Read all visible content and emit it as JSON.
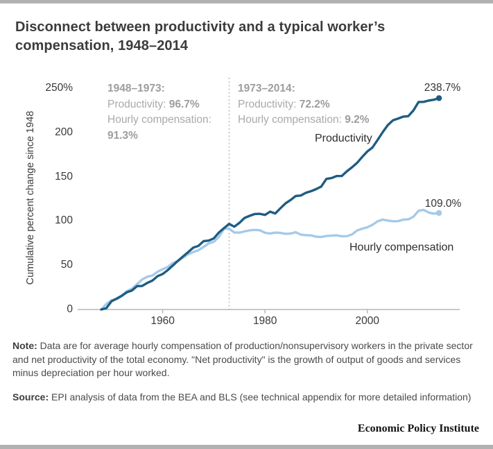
{
  "header": {
    "title_line1": "Disconnect between productivity and a typical worker’s",
    "title_line2": "compensation, 1948–2014"
  },
  "chart_data": {
    "type": "line",
    "title": "Disconnect between productivity and a typical worker’s compensation, 1948–2014",
    "xlabel": "",
    "ylabel": "Cumulative percent change since 1948",
    "xlim": [
      1948,
      2014
    ],
    "ylim": [
      0,
      250
    ],
    "grid": false,
    "legend_position": "inline-labels",
    "divider_year": 1973,
    "x_ticks": [
      {
        "label": "1960",
        "value": 1960
      },
      {
        "label": "1980",
        "value": 1980
      },
      {
        "label": "2000",
        "value": 2000
      }
    ],
    "y_ticks": [
      {
        "label": "250%",
        "value": 250
      },
      {
        "label": "200",
        "value": 200
      },
      {
        "label": "150",
        "value": 150
      },
      {
        "label": "100",
        "value": 100
      },
      {
        "label": "50",
        "value": 50
      },
      {
        "label": "0",
        "value": 0
      }
    ],
    "x": [
      1948,
      1949,
      1950,
      1951,
      1952,
      1953,
      1954,
      1955,
      1956,
      1957,
      1958,
      1959,
      1960,
      1961,
      1962,
      1963,
      1964,
      1965,
      1966,
      1967,
      1968,
      1969,
      1970,
      1971,
      1972,
      1973,
      1974,
      1975,
      1976,
      1977,
      1978,
      1979,
      1980,
      1981,
      1982,
      1983,
      1984,
      1985,
      1986,
      1987,
      1988,
      1989,
      1990,
      1991,
      1992,
      1993,
      1994,
      1995,
      1996,
      1997,
      1998,
      1999,
      2000,
      2001,
      2002,
      2003,
      2004,
      2005,
      2006,
      2007,
      2008,
      2009,
      2010,
      2011,
      2012,
      2013,
      2014
    ],
    "series": [
      {
        "name": "Productivity",
        "color": "#1f5c82",
        "end_label": "238.7%",
        "values": [
          0,
          1.6,
          9.3,
          12.2,
          15.5,
          19.4,
          21.5,
          26.4,
          26.6,
          30.0,
          32.7,
          37.6,
          40.1,
          44.4,
          49.8,
          55.0,
          60.0,
          64.9,
          69.9,
          71.9,
          77.2,
          77.8,
          80.3,
          87.0,
          91.9,
          96.7,
          93.5,
          97.9,
          103.4,
          105.8,
          107.8,
          108.1,
          106.8,
          110.5,
          108.4,
          114.3,
          119.8,
          123.7,
          128.1,
          128.8,
          131.8,
          133.6,
          136.0,
          138.9,
          147.5,
          148.4,
          150.7,
          150.8,
          156.0,
          160.6,
          165.6,
          172.3,
          178.5,
          182.9,
          191.4,
          200.2,
          208.3,
          213.6,
          215.6,
          217.8,
          218.3,
          224.8,
          234.3,
          234.5,
          236.0,
          236.9,
          238.7
        ]
      },
      {
        "name": "Hourly compensation",
        "color": "#a5c9e9",
        "end_label": "109.0%",
        "values": [
          0,
          6.3,
          10.5,
          11.7,
          15.0,
          20.8,
          23.4,
          28.7,
          33.9,
          37.1,
          38.3,
          42.6,
          45.5,
          48.0,
          52.5,
          55.0,
          58.6,
          62.5,
          64.9,
          66.9,
          70.7,
          74.7,
          76.6,
          82.0,
          91.2,
          91.3,
          87.0,
          86.8,
          88.2,
          89.4,
          89.9,
          89.5,
          86.6,
          85.9,
          86.8,
          86.5,
          85.5,
          85.7,
          87.3,
          84.6,
          83.9,
          83.7,
          82.2,
          81.9,
          83.0,
          83.4,
          83.8,
          82.7,
          82.8,
          84.8,
          89.2,
          91.3,
          92.9,
          95.6,
          99.5,
          101.6,
          100.5,
          99.7,
          99.8,
          101.5,
          101.8,
          104.7,
          111.5,
          112.5,
          109.5,
          108.3,
          109.0
        ]
      }
    ],
    "annotations": {
      "period1": {
        "heading": "1948–1973:",
        "row1_label": "Productivity: ",
        "row1_value": "96.7%",
        "row2_label": "Hourly compensation:",
        "row3_value": "91.3%"
      },
      "period2": {
        "heading": "1973–2014:",
        "row1_label": "Productivity: ",
        "row1_value": "72.2%",
        "row2_label": "Hourly compensation: ",
        "row2_value": "9.2%"
      }
    }
  },
  "note": {
    "label": "Note:",
    "text": " Data are for average hourly compensation of production/nonsupervisory workers in the private sector and net productivity of the total economy. \"Net productivity\" is the growth of output of goods and services minus depreciation per hour worked."
  },
  "source": {
    "label": "Source:",
    "text": " EPI analysis of data from the BEA and BLS (see technical appendix for more detailed information)"
  },
  "footer": {
    "brand": "Economic Policy Institute"
  },
  "colors": {
    "accent_bar": "#b1b1b1",
    "axis": "#b5b5b5",
    "divider": "#c9c9c9",
    "annotation_text": "#a9a9a9",
    "productivity": "#1f5c82",
    "compensation": "#a5c9e9"
  }
}
